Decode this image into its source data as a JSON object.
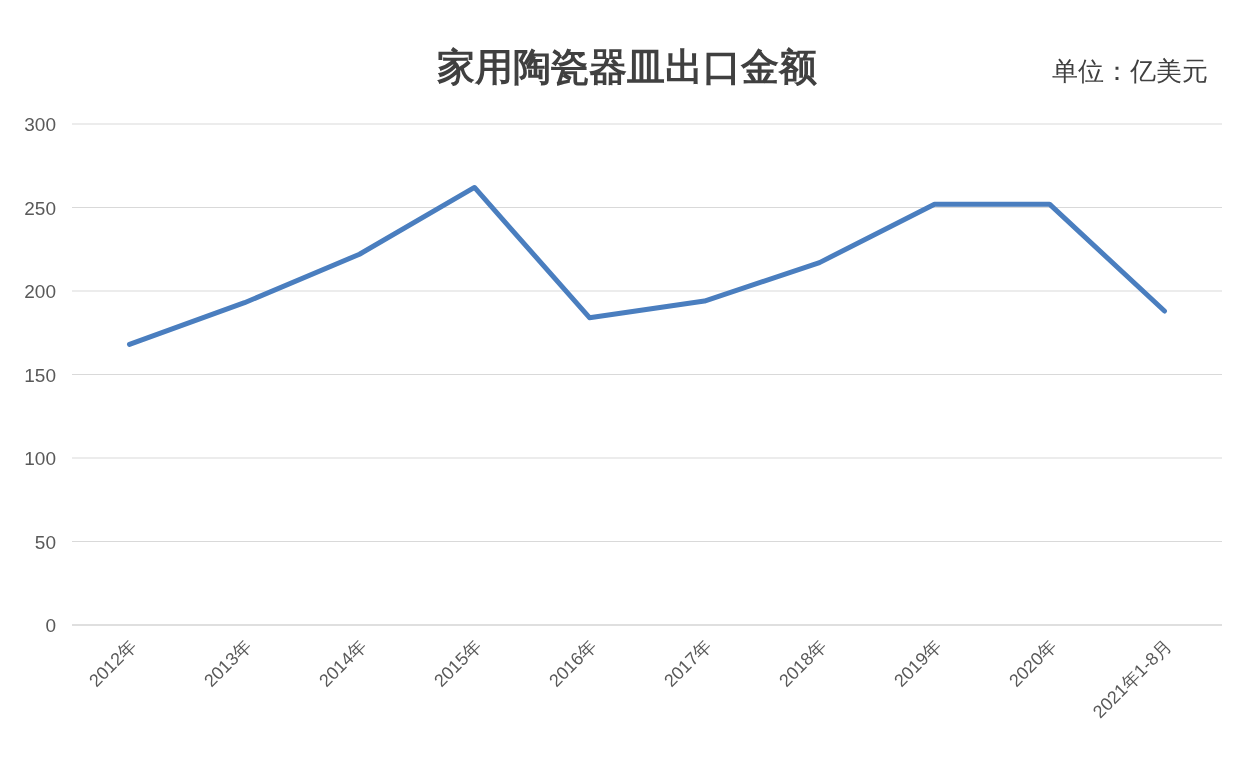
{
  "chart_data": {
    "type": "line",
    "title": "家用陶瓷器皿出口金额",
    "annotations": [
      "单位：亿美元"
    ],
    "categories": [
      "2012年",
      "2013年",
      "2014年",
      "2015年",
      "2016年",
      "2017年",
      "2018年",
      "2019年",
      "2020年",
      "2021年1-8月"
    ],
    "series": [
      {
        "color": "#4a7ebf",
        "values": [
          168,
          193,
          222,
          262,
          184,
          194,
          217,
          252,
          252,
          188
        ]
      }
    ],
    "ylim": [
      0,
      300
    ],
    "yticks": [
      0,
      50,
      100,
      150,
      200,
      250,
      300
    ],
    "grid": "y"
  }
}
